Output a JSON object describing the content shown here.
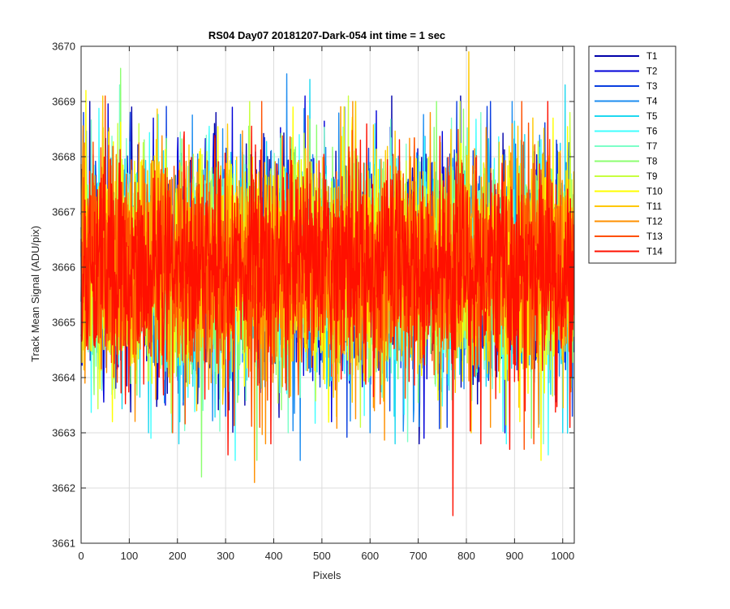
{
  "chart_data": {
    "type": "line",
    "title": "RS04 Day07 20181207-Dark-054 int time = 1 sec",
    "xlabel": "Pixels",
    "ylabel": "Track Mean Signal (ADU/pix)",
    "xlim": [
      0,
      1024
    ],
    "ylim": [
      3661,
      3670
    ],
    "xticks": [
      0,
      100,
      200,
      300,
      400,
      500,
      600,
      700,
      800,
      900,
      1000
    ],
    "yticks": [
      3661,
      3662,
      3663,
      3664,
      3665,
      3666,
      3667,
      3668,
      3669,
      3670
    ],
    "grid": true,
    "legend_position": "outside-top-right",
    "n_points": 1024,
    "series": [
      {
        "name": "T1",
        "color": "#0000AA",
        "mean": 3666.0,
        "std": 0.95,
        "extremes": [
          [
            18,
            3669.0
          ],
          [
            105,
            3668.9
          ],
          [
            280,
            3668.8
          ],
          [
            340,
            3663.5
          ],
          [
            645,
            3669.1
          ],
          [
            788,
            3669.1
          ],
          [
            702,
            3662.8
          ]
        ]
      },
      {
        "name": "T2",
        "color": "#0000D8",
        "mean": 3666.0,
        "std": 0.95,
        "extremes": [
          [
            150,
            3668.7
          ],
          [
            175,
            3663.5
          ],
          [
            465,
            3669.1
          ],
          [
            520,
            3663.2
          ],
          [
            712,
            3662.9
          ],
          [
            880,
            3663.0
          ]
        ]
      },
      {
        "name": "T3",
        "color": "#0A3FE0",
        "mean": 3666.0,
        "std": 0.95,
        "extremes": [
          [
            5,
            3668.8
          ],
          [
            300,
            3663.3
          ],
          [
            547,
            3668.9
          ],
          [
            760,
            3663.1
          ],
          [
            850,
            3669.0
          ],
          [
            1020,
            3663.3
          ]
        ]
      },
      {
        "name": "T4",
        "color": "#1C8CF0",
        "mean": 3666.0,
        "std": 0.95,
        "extremes": [
          [
            427,
            3669.5
          ],
          [
            455,
            3662.5
          ],
          [
            600,
            3663.0
          ],
          [
            690,
            3663.2
          ],
          [
            830,
            3668.6
          ]
        ]
      },
      {
        "name": "T5",
        "color": "#1FD8F0",
        "mean": 3666.0,
        "std": 0.95,
        "extremes": [
          [
            140,
            3663.0
          ],
          [
            205,
            3663.2
          ],
          [
            475,
            3669.4
          ],
          [
            650,
            3663.3
          ],
          [
            1005,
            3669.3
          ],
          [
            1000,
            3663.0
          ]
        ]
      },
      {
        "name": "T6",
        "color": "#40FFFF",
        "mean": 3666.0,
        "std": 0.95,
        "extremes": [
          [
            145,
            3662.9
          ],
          [
            320,
            3662.5
          ],
          [
            610,
            3668.6
          ],
          [
            970,
            3662.6
          ]
        ]
      },
      {
        "name": "T7",
        "color": "#7CFFC8",
        "mean": 3666.0,
        "std": 0.95,
        "extremes": [
          [
            80,
            3669.3
          ],
          [
            430,
            3663.0
          ],
          [
            830,
            3668.8
          ],
          [
            960,
            3662.8
          ]
        ]
      },
      {
        "name": "T8",
        "color": "#8CFF70",
        "mean": 3666.0,
        "std": 0.95,
        "extremes": [
          [
            82,
            3669.6
          ],
          [
            250,
            3662.2
          ],
          [
            365,
            3662.5
          ],
          [
            738,
            3669.0
          ],
          [
            935,
            3662.9
          ]
        ]
      },
      {
        "name": "T9",
        "color": "#C8FF40",
        "mean": 3666.0,
        "std": 0.95,
        "extremes": [
          [
            120,
            3668.6
          ],
          [
            350,
            3669.0
          ],
          [
            555,
            3669.1
          ],
          [
            580,
            3663.1
          ],
          [
            1015,
            3668.8
          ]
        ]
      },
      {
        "name": "T10",
        "color": "#FFFF00",
        "mean": 3666.0,
        "std": 0.95,
        "extremes": [
          [
            10,
            3669.2
          ],
          [
            65,
            3663.2
          ],
          [
            440,
            3668.9
          ],
          [
            530,
            3663.3
          ],
          [
            955,
            3662.5
          ],
          [
            980,
            3668.7
          ]
        ]
      },
      {
        "name": "T11",
        "color": "#FFC800",
        "mean": 3666.0,
        "std": 0.95,
        "extremes": [
          [
            805,
            3669.9
          ],
          [
            810,
            3663.0
          ],
          [
            45,
            3669.1
          ],
          [
            240,
            3663.4
          ]
        ]
      },
      {
        "name": "T12",
        "color": "#FF9000",
        "mean": 3666.0,
        "std": 0.95,
        "extremes": [
          [
            360,
            3662.1
          ],
          [
            725,
            3668.8
          ],
          [
            850,
            3663.1
          ],
          [
            895,
            3668.6
          ],
          [
            950,
            3663.1
          ]
        ]
      },
      {
        "name": "T13",
        "color": "#FF5000",
        "mean": 3666.0,
        "std": 0.95,
        "extremes": [
          [
            50,
            3669.1
          ],
          [
            190,
            3663.0
          ],
          [
            915,
            3669.0
          ],
          [
            920,
            3662.7
          ]
        ]
      },
      {
        "name": "T14",
        "color": "#FF1000",
        "mean": 3666.0,
        "std": 0.95,
        "extremes": [
          [
            772,
            3661.5
          ],
          [
            305,
            3662.6
          ],
          [
            830,
            3662.8
          ],
          [
            890,
            3662.7
          ],
          [
            580,
            3668.3
          ]
        ]
      }
    ]
  }
}
